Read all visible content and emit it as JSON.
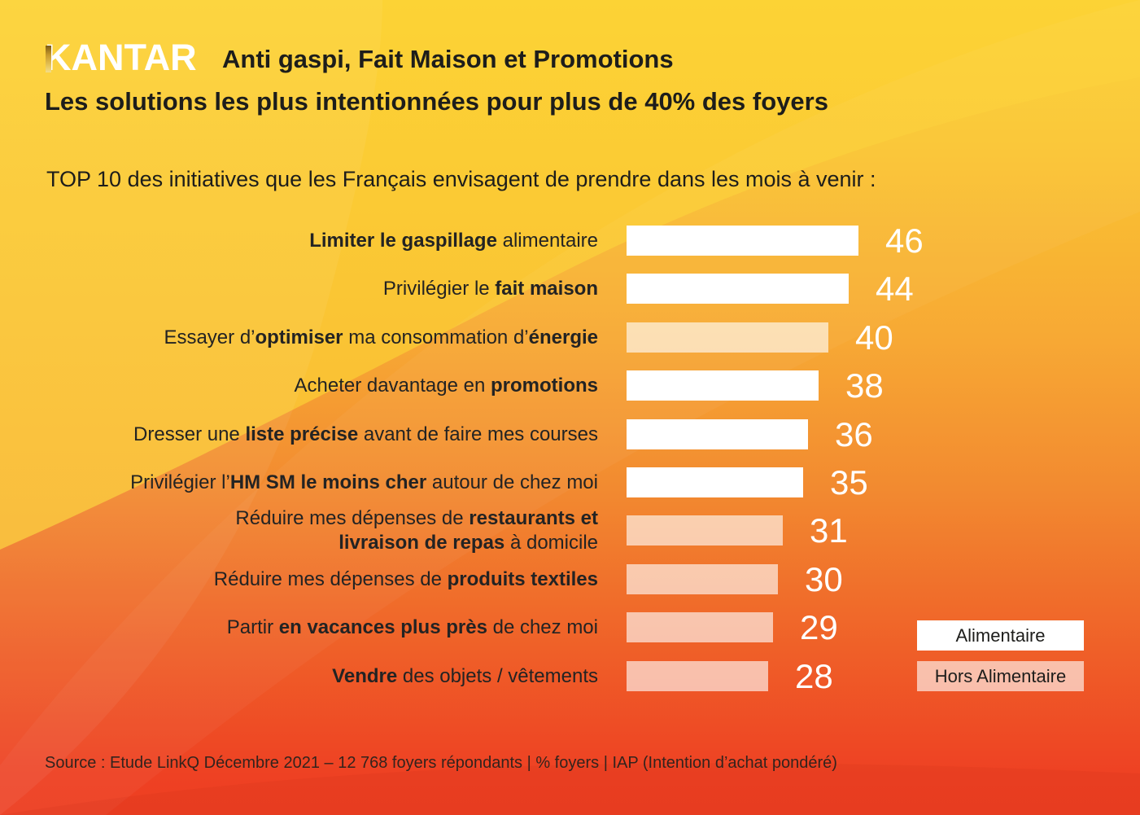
{
  "header": {
    "logo": "KANTAR",
    "title": "Anti gaspi, Fait Maison et Promotions",
    "subtitle": "Les solutions les plus intentionnées pour plus de 40% des foyers"
  },
  "intro": "TOP 10 des initiatives que les Français envisagent de prendre dans les mois à venir :",
  "legend": [
    {
      "label": "Alimentaire",
      "type": "food"
    },
    {
      "label": "Hors Alimentaire",
      "type": "nonfood"
    }
  ],
  "source": "Source : Etude LinkQ Décembre 2021 – 12 768 foyers répondants | % foyers | IAP (Intention d’achat pondéré)",
  "colors": {
    "bg_top": "#FCD335",
    "bg_mid": "#F6A133",
    "bg_bottom": "#ED3F22",
    "food_bar": "#FFFFFF",
    "nonfood_bar": "rgba(255,255,255,0.62)",
    "text_dark": "#1D1D1B",
    "value_text": "#FFFFFF"
  },
  "chart_data": {
    "type": "bar",
    "orientation": "horizontal",
    "title": "TOP 10 des initiatives que les Français envisagent de prendre dans les mois à venir",
    "xlabel": "% foyers (IAP)",
    "xlim": [
      0,
      50
    ],
    "legend_position": "bottom-right",
    "categories": [
      "Limiter le gaspillage alimentaire",
      "Privilégier le fait maison",
      "Essayer d’optimiser ma consommation d’énergie",
      "Acheter davantage en promotions",
      "Dresser une liste précise avant de faire mes courses",
      "Privilégier l’HM SM le moins cher autour de chez moi",
      "Réduire mes dépenses de restaurants et livraison de repas à domicile",
      "Réduire mes dépenses de produits textiles",
      "Partir en vacances plus près de chez moi",
      "Vendre des objets / vêtements"
    ],
    "values": [
      46,
      44,
      40,
      38,
      36,
      35,
      31,
      30,
      29,
      28
    ],
    "series_by_category": [
      "Alimentaire",
      "Alimentaire",
      "Hors Alimentaire",
      "Alimentaire",
      "Alimentaire",
      "Alimentaire",
      "Hors Alimentaire",
      "Hors Alimentaire",
      "Hors Alimentaire",
      "Hors Alimentaire"
    ],
    "rows": [
      {
        "value": 46,
        "category": "food",
        "lines": [
          [
            {
              "t": "Limiter le gaspillage",
              "b": true
            },
            {
              "t": " alimentaire",
              "b": false
            }
          ]
        ]
      },
      {
        "value": 44,
        "category": "food",
        "lines": [
          [
            {
              "t": "Privilégier le ",
              "b": false
            },
            {
              "t": "fait maison",
              "b": true
            }
          ]
        ]
      },
      {
        "value": 40,
        "category": "nonfood",
        "lines": [
          [
            {
              "t": "Essayer d’",
              "b": false
            },
            {
              "t": "optimiser",
              "b": true
            },
            {
              "t": " ma consommation d’",
              "b": false
            },
            {
              "t": "énergie",
              "b": true
            }
          ]
        ]
      },
      {
        "value": 38,
        "category": "food",
        "lines": [
          [
            {
              "t": "Acheter davantage en ",
              "b": false
            },
            {
              "t": "promotions",
              "b": true
            }
          ]
        ]
      },
      {
        "value": 36,
        "category": "food",
        "lines": [
          [
            {
              "t": "Dresser une ",
              "b": false
            },
            {
              "t": "liste précise",
              "b": true
            },
            {
              "t": " avant de faire mes courses",
              "b": false
            }
          ]
        ]
      },
      {
        "value": 35,
        "category": "food",
        "lines": [
          [
            {
              "t": "Privilégier l’",
              "b": false
            },
            {
              "t": "HM SM le moins cher",
              "b": true
            },
            {
              "t": " autour de chez moi",
              "b": false
            }
          ]
        ]
      },
      {
        "value": 31,
        "category": "nonfood",
        "lines": [
          [
            {
              "t": "Réduire mes dépenses de ",
              "b": false
            },
            {
              "t": "restaurants et",
              "b": true
            }
          ],
          [
            {
              "t": "livraison de repas",
              "b": true
            },
            {
              "t": " à domicile",
              "b": false
            }
          ]
        ]
      },
      {
        "value": 30,
        "category": "nonfood",
        "lines": [
          [
            {
              "t": "Réduire mes dépenses de ",
              "b": false
            },
            {
              "t": "produits textiles",
              "b": true
            }
          ]
        ]
      },
      {
        "value": 29,
        "category": "nonfood",
        "lines": [
          [
            {
              "t": "Partir ",
              "b": false
            },
            {
              "t": "en vacances plus près",
              "b": true
            },
            {
              "t": " de chez moi",
              "b": false
            }
          ]
        ]
      },
      {
        "value": 28,
        "category": "nonfood",
        "lines": [
          [
            {
              "t": "Vendre",
              "b": true
            },
            {
              "t": " des objets / vêtements",
              "b": false
            }
          ]
        ]
      }
    ]
  }
}
